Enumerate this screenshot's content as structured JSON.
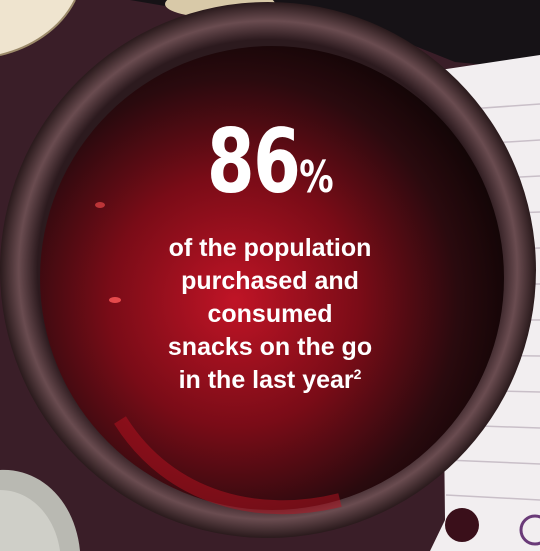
{
  "stat": {
    "value": "86",
    "unit": "%"
  },
  "caption": {
    "lines": [
      "of the population",
      "purchased and",
      "consumed",
      "snacks on the go",
      "in the last year"
    ],
    "footnote": "2"
  },
  "colors": {
    "background": "#3a1e28",
    "wine": "#8a0f1c",
    "glass_rim": "#4a2a30",
    "paper": "#f2eef0",
    "text": "#ffffff"
  }
}
